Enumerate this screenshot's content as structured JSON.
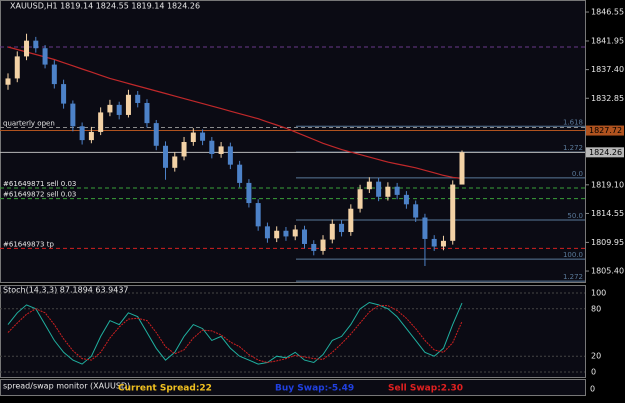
{
  "chart_data": [
    {
      "type": "candlestick",
      "title": "XAUUSD,H1 1819.14 1824.55 1819.14 1824.26",
      "ylim": [
        1803.5,
        1848.46
      ],
      "yticks": [
        1846.55,
        1841.95,
        {
          "value": 1837.4,
          "label": "1837.40"
        },
        1832.85,
        {
          "value": 1819.1,
          "label": "1819.10"
        },
        1814.55,
        1809.95,
        {
          "value": 1805.4,
          "label": "1805.40"
        }
      ],
      "bull_color": "#f3d2a6",
      "bear_color": "#4d82c8",
      "open": [
        1835.0,
        1836.0,
        1839.5,
        1842.0,
        1840.8,
        1838.2,
        1835.1,
        1832.0,
        1828.4,
        1826.2,
        1827.5,
        1830.6,
        1831.8,
        1830.2,
        1833.4,
        1832.1,
        1828.9,
        1825.3,
        1821.8,
        1823.6,
        1825.9,
        1827.4,
        1826.1,
        1824.0,
        1825.2,
        1822.3,
        1819.4,
        1816.2,
        1812.5,
        1810.6,
        1811.8,
        1810.9,
        1812.0,
        1809.7,
        1808.6,
        1810.4,
        1812.9,
        1811.6,
        1815.3,
        1818.4,
        1819.6,
        1817.2,
        1818.8,
        1817.5,
        1816.0,
        1813.9,
        1810.5,
        1809.3,
        1810.2,
        1819.14
      ],
      "high": [
        1836.8,
        1840.3,
        1843.1,
        1842.6,
        1841.3,
        1838.9,
        1835.8,
        1832.5,
        1829.0,
        1828.3,
        1831.4,
        1832.6,
        1832.3,
        1834.2,
        1834.0,
        1832.7,
        1829.4,
        1826.0,
        1824.3,
        1826.7,
        1828.1,
        1827.9,
        1826.7,
        1825.9,
        1825.8,
        1822.9,
        1820.0,
        1816.8,
        1813.1,
        1812.5,
        1812.4,
        1812.7,
        1812.6,
        1810.3,
        1811.1,
        1813.6,
        1813.5,
        1816.0,
        1819.1,
        1820.3,
        1820.2,
        1819.5,
        1819.4,
        1818.1,
        1816.6,
        1814.5,
        1811.1,
        1811.0,
        1819.8,
        1824.55
      ],
      "low": [
        1834.2,
        1835.4,
        1838.9,
        1840.1,
        1837.6,
        1834.4,
        1831.2,
        1827.6,
        1825.5,
        1825.7,
        1827.0,
        1830.0,
        1829.5,
        1829.8,
        1831.4,
        1828.2,
        1824.6,
        1819.9,
        1821.2,
        1823.0,
        1825.3,
        1825.4,
        1823.3,
        1823.4,
        1821.6,
        1818.7,
        1815.5,
        1811.8,
        1809.9,
        1810.0,
        1810.2,
        1810.3,
        1809.0,
        1807.9,
        1808.0,
        1809.8,
        1810.9,
        1811.0,
        1814.7,
        1817.8,
        1816.5,
        1816.6,
        1816.8,
        1815.3,
        1813.2,
        1806.2,
        1808.6,
        1808.7,
        1809.6,
        1819.14
      ],
      "close": [
        1836.0,
        1839.5,
        1842.0,
        1840.8,
        1838.2,
        1835.1,
        1832.0,
        1828.4,
        1826.2,
        1827.5,
        1830.6,
        1831.8,
        1830.2,
        1833.4,
        1832.1,
        1828.9,
        1825.3,
        1821.8,
        1823.6,
        1825.9,
        1827.4,
        1826.1,
        1824.0,
        1825.2,
        1822.3,
        1819.4,
        1816.2,
        1812.5,
        1810.6,
        1811.8,
        1810.9,
        1812.0,
        1809.7,
        1808.6,
        1810.4,
        1812.9,
        1811.6,
        1815.3,
        1818.4,
        1819.6,
        1817.2,
        1818.8,
        1817.5,
        1816.0,
        1813.9,
        1810.5,
        1809.3,
        1810.2,
        1819.14,
        1824.26
      ],
      "ma": {
        "color": "#c0282a",
        "values": [
          1841.0,
          1840.6,
          1840.2,
          1839.8,
          1839.4,
          1839.0,
          1838.5,
          1838.0,
          1837.5,
          1837.0,
          1836.5,
          1836.0,
          1835.6,
          1835.2,
          1834.8,
          1834.4,
          1834.0,
          1833.6,
          1833.2,
          1832.8,
          1832.4,
          1832.0,
          1831.6,
          1831.2,
          1830.8,
          1830.4,
          1830.0,
          1829.6,
          1829.1,
          1828.6,
          1828.1,
          1827.5,
          1826.9,
          1826.3,
          1825.7,
          1825.2,
          1824.7,
          1824.3,
          1823.9,
          1823.5,
          1823.1,
          1822.7,
          1822.4,
          1822.1,
          1821.8,
          1821.4,
          1821.0,
          1820.6,
          1820.3,
          1820.1
        ]
      },
      "levels": [
        {
          "label": "quarterly open",
          "value": 1828.2,
          "color": "#8c8c8c"
        },
        {
          "value": 1841.0,
          "color": "#6a3a8a"
        },
        {
          "label": "#61649871 sell 0.03",
          "value": 1818.6,
          "color": "#3aa03a"
        },
        {
          "label": "#61649872 sell 0.03",
          "value": 1816.9,
          "color": "#3aa03a"
        },
        {
          "label": "#61649873 tp",
          "value": 1809.0,
          "color": "#d42020"
        },
        {
          "value": 1827.72,
          "color": "#b0531f",
          "tag": true
        },
        {
          "value": 1824.26,
          "color": "#b8b8b8",
          "tag": true
        }
      ],
      "fibo": {
        "color": "#5a7a9a",
        "levels": [
          {
            "label": "1.618",
            "value": 1828.4
          },
          {
            "label": "1.272",
            "value": 1824.3
          },
          {
            "label": "0.0",
            "value": 1820.2
          },
          {
            "label": "50.0",
            "value": 1813.5
          },
          {
            "label": "100.0",
            "value": 1807.3
          },
          {
            "label": "1.272",
            "value": 1803.8
          }
        ]
      }
    },
    {
      "type": "line",
      "title": "Stoch(14,3,3) 87.1894 63.9437",
      "ylim": [
        0,
        100
      ],
      "yticks": [
        100,
        80,
        20,
        0
      ],
      "series": [
        {
          "color": "#20b0a0",
          "values": [
            60,
            75,
            85,
            80,
            60,
            40,
            25,
            15,
            10,
            20,
            45,
            65,
            60,
            75,
            70,
            50,
            30,
            15,
            25,
            45,
            60,
            55,
            40,
            45,
            30,
            20,
            15,
            10,
            12,
            20,
            18,
            25,
            15,
            12,
            22,
            40,
            45,
            60,
            80,
            88,
            85,
            80,
            70,
            55,
            40,
            25,
            20,
            30,
            60,
            87.19
          ]
        },
        {
          "color": "#d02020",
          "values": [
            50,
            62,
            73,
            80,
            75,
            60,
            42,
            27,
            17,
            15,
            25,
            43,
            57,
            67,
            68,
            65,
            50,
            32,
            23,
            28,
            43,
            53,
            52,
            47,
            38,
            32,
            22,
            15,
            12,
            14,
            17,
            21,
            19,
            17,
            16,
            25,
            36,
            48,
            62,
            76,
            84,
            84,
            78,
            68,
            55,
            40,
            28,
            25,
            37,
            63.94
          ]
        }
      ]
    }
  ],
  "spread_monitor": {
    "title": "spread/swap monitor (XAUUSD)",
    "spread": "Current Spread:22",
    "buy_swap": "Buy Swap:-5.49",
    "sell_swap": "Sell Swap:2.30",
    "axis_label": 0
  }
}
